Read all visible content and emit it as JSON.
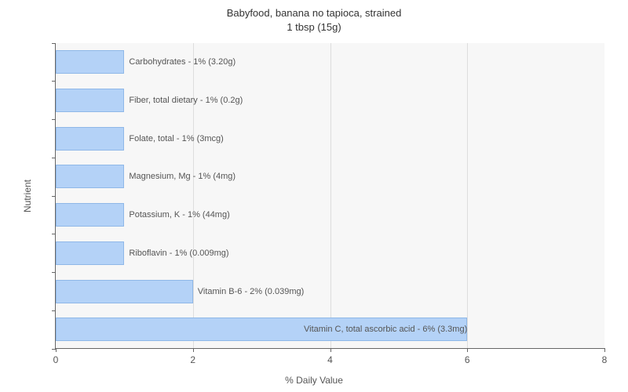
{
  "chart": {
    "type": "bar-horizontal",
    "title_line1": "Babyfood, banana no tapioca, strained",
    "title_line2": "1 tbsp (15g)",
    "title_fontsize": 13,
    "title_color": "#333333",
    "xlabel": "% Daily Value",
    "ylabel": "Nutrient",
    "label_fontsize": 12,
    "label_color": "#555555",
    "xlim": [
      0,
      8
    ],
    "xtick_step": 2,
    "xticks": [
      0,
      2,
      4,
      6,
      8
    ],
    "plot_background": "#f7f7f7",
    "page_background": "#ffffff",
    "grid_color": "#dddddd",
    "axis_color": "#666666",
    "bar_fill": "#b4d2f7",
    "bar_border": "#8fb8e8",
    "bar_label_color": "#555555",
    "bar_label_fontsize": 11,
    "bar_height_ratio": 0.62,
    "nutrients": [
      {
        "label": "Carbohydrates - 1% (3.20g)",
        "value": 1,
        "label_inside": false
      },
      {
        "label": "Fiber, total dietary - 1% (0.2g)",
        "value": 1,
        "label_inside": false
      },
      {
        "label": "Folate, total - 1% (3mcg)",
        "value": 1,
        "label_inside": false
      },
      {
        "label": "Magnesium, Mg - 1% (4mg)",
        "value": 1,
        "label_inside": false
      },
      {
        "label": "Potassium, K - 1% (44mg)",
        "value": 1,
        "label_inside": false
      },
      {
        "label": "Riboflavin - 1% (0.009mg)",
        "value": 1,
        "label_inside": false
      },
      {
        "label": "Vitamin B-6 - 2% (0.039mg)",
        "value": 2,
        "label_inside": false
      },
      {
        "label": "Vitamin C, total ascorbic acid - 6% (3.3mg)",
        "value": 6,
        "label_inside": true
      }
    ]
  }
}
